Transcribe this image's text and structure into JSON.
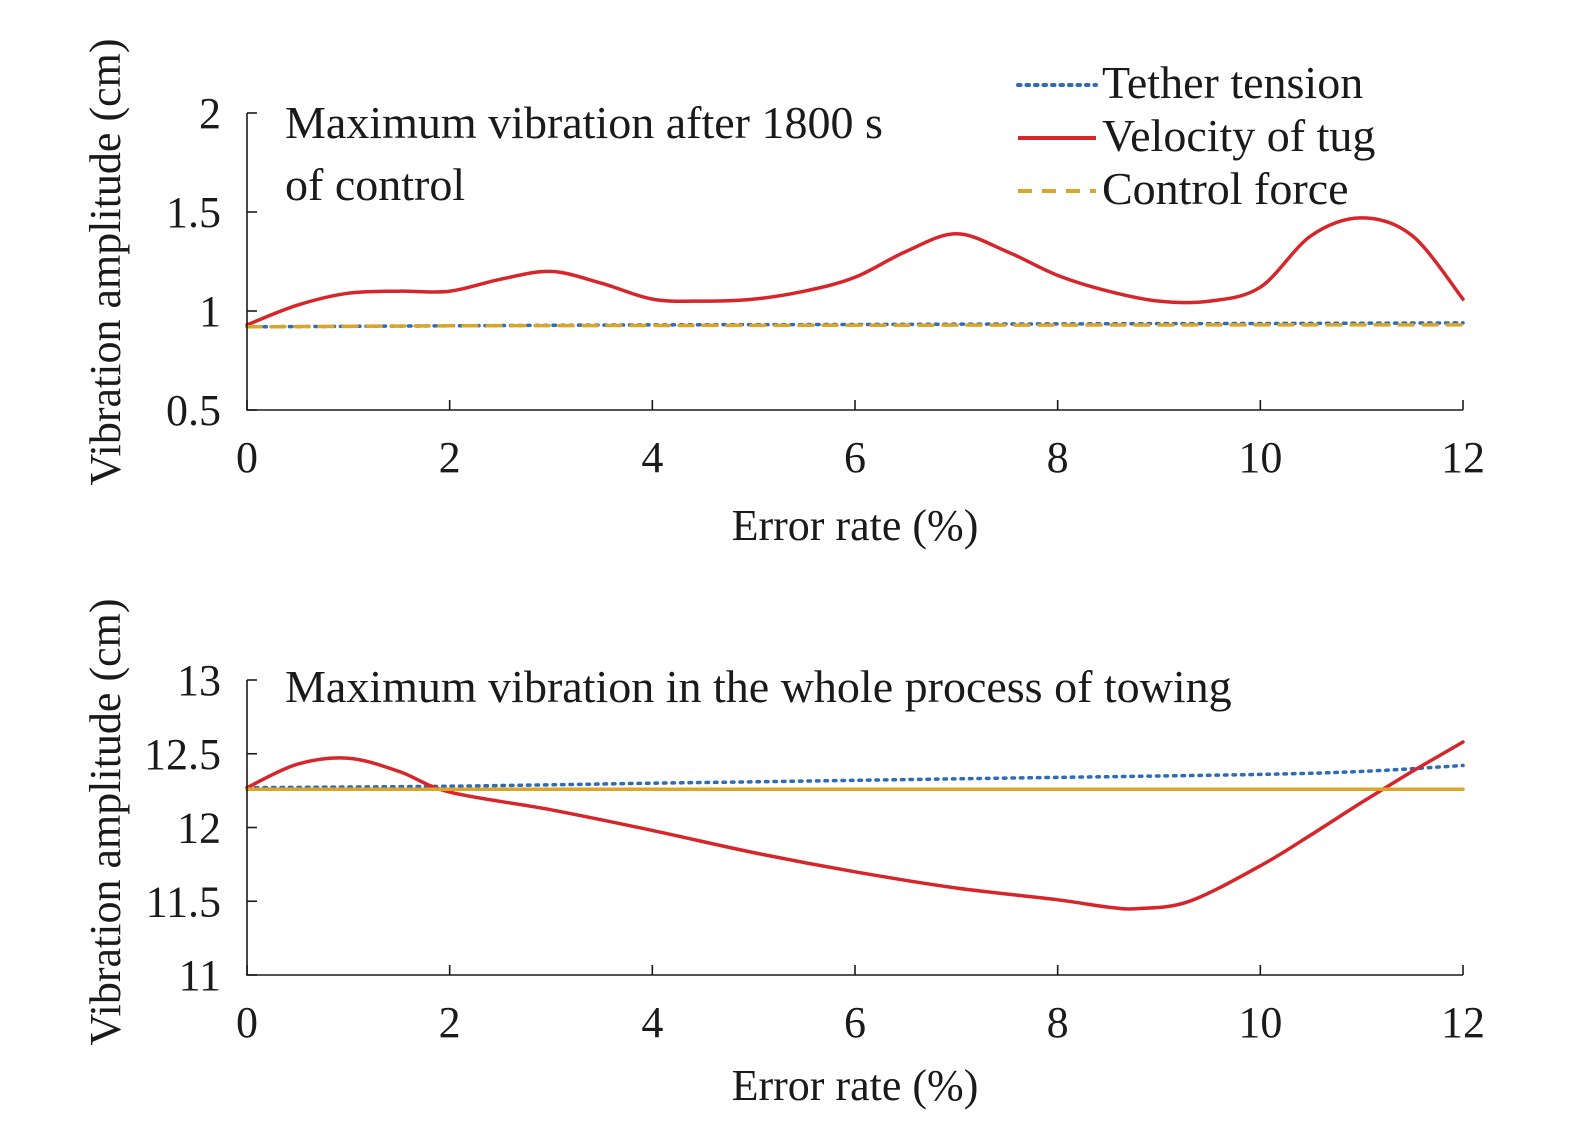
{
  "legend": [
    {
      "name": "Tether tension",
      "color": "#2e6cb8",
      "dash": "dotted"
    },
    {
      "name": "Velocity of tug",
      "color": "#d7262b",
      "dash": "solid"
    },
    {
      "name": "Control force",
      "color": "#dba528",
      "dash": "dashed"
    }
  ],
  "chart_data": [
    {
      "type": "line",
      "annotation": [
        "Maximum vibration after 1800 s",
        "of control"
      ],
      "xlabel": "Error rate (%)",
      "ylabel": "Vibration amplitude (cm)",
      "xlim": [
        0,
        12
      ],
      "ylim": [
        0.5,
        2
      ],
      "xticks": [
        0,
        2,
        4,
        6,
        8,
        10,
        12
      ],
      "yticks": [
        0.5,
        1,
        1.5,
        2
      ],
      "ytick_labels": [
        "0.5",
        "1",
        "1.5",
        "2"
      ],
      "grid": false,
      "series": [
        {
          "name": "Tether tension",
          "color": "#2e6cb8",
          "dash": "dotted",
          "x": [
            0,
            2,
            4,
            6,
            8,
            10,
            12
          ],
          "y": [
            0.92,
            0.925,
            0.93,
            0.932,
            0.935,
            0.937,
            0.94
          ]
        },
        {
          "name": "Velocity of tug",
          "color": "#d7262b",
          "dash": "solid",
          "x": [
            0,
            0.5,
            1,
            1.5,
            2,
            2.5,
            3,
            3.5,
            4,
            4.5,
            5,
            5.5,
            6,
            6.5,
            7,
            7.5,
            8,
            8.5,
            9,
            9.5,
            10,
            10.5,
            11,
            11.5,
            12
          ],
          "y": [
            0.93,
            1.03,
            1.09,
            1.1,
            1.1,
            1.16,
            1.2,
            1.14,
            1.06,
            1.05,
            1.06,
            1.1,
            1.17,
            1.3,
            1.39,
            1.3,
            1.18,
            1.1,
            1.05,
            1.05,
            1.12,
            1.38,
            1.47,
            1.38,
            1.06
          ]
        },
        {
          "name": "Control force",
          "color": "#dba528",
          "dash": "dashed",
          "x": [
            0,
            2,
            4,
            6,
            8,
            10,
            12
          ],
          "y": [
            0.92,
            0.925,
            0.927,
            0.928,
            0.929,
            0.93,
            0.93
          ]
        }
      ]
    },
    {
      "type": "line",
      "annotation": [
        "Maximum vibration in the whole process of towing"
      ],
      "xlabel": "Error rate (%)",
      "ylabel": "Vibration amplitude (cm)",
      "xlim": [
        0,
        12
      ],
      "ylim": [
        11,
        13
      ],
      "xticks": [
        0,
        2,
        4,
        6,
        8,
        10,
        12
      ],
      "yticks": [
        11,
        11.5,
        12,
        12.5,
        13
      ],
      "ytick_labels": [
        "11",
        "11.5",
        "12",
        "12.5",
        "13"
      ],
      "grid": false,
      "series": [
        {
          "name": "Tether tension",
          "color": "#2e6cb8",
          "dash": "dotted",
          "x": [
            0,
            2,
            4,
            6,
            8,
            10,
            11,
            12
          ],
          "y": [
            12.27,
            12.28,
            12.3,
            12.32,
            12.34,
            12.36,
            12.38,
            12.42
          ]
        },
        {
          "name": "Velocity of tug",
          "color": "#d7262b",
          "dash": "solid",
          "x": [
            0,
            0.5,
            1,
            1.5,
            2,
            3,
            4,
            5,
            6,
            7,
            8,
            8.5,
            8.8,
            9.3,
            10,
            10.5,
            11,
            11.5,
            12
          ],
          "y": [
            12.27,
            12.43,
            12.47,
            12.38,
            12.24,
            12.12,
            11.98,
            11.83,
            11.7,
            11.59,
            11.51,
            11.46,
            11.45,
            11.5,
            11.74,
            11.95,
            12.17,
            12.38,
            12.58
          ]
        },
        {
          "name": "Control force",
          "color": "#dba528",
          "dash": "solid",
          "x": [
            0,
            12
          ],
          "y": [
            12.26,
            12.26
          ]
        }
      ]
    }
  ]
}
